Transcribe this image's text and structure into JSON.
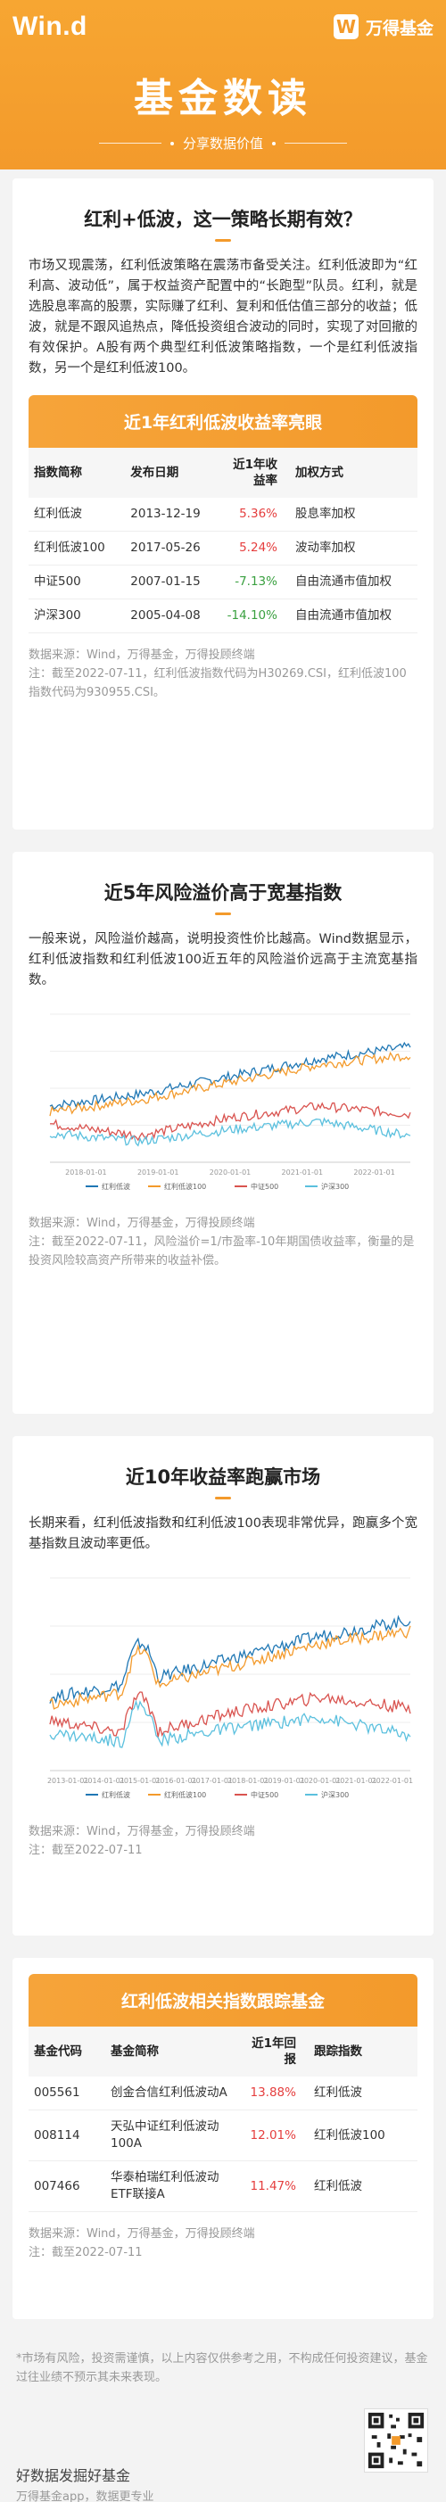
{
  "header": {
    "brand_left": "Win.d",
    "brand_right": "万得基金",
    "logo_glyph": "W",
    "title": "基金数读",
    "subtitle": "分享数据价值"
  },
  "section1": {
    "title": "红利+低波，这一策略长期有效？",
    "intro": "市场又现震荡，红利低波策略在震荡市备受关注。红利低波即为“红利高、波动低”，属于权益资产配置中的“长跑型”队员。红利，就是选股息率高的股票，实际赚了红利、复利和低估值三部分的收益；低波，就是不跟风追热点，降低投资组合波动的同时，实现了对回撤的有效保护。A股有两个典型红利低波策略指数，一个是红利低波指数，另一个是红利低波100。",
    "table_title": "近1年红利低波收益率亮眼",
    "columns": [
      "指数简称",
      "发布日期",
      "近1年收益率",
      "加权方式"
    ],
    "rows": [
      {
        "name": "红利低波",
        "date": "2013-12-19",
        "ret": "5.36%",
        "weight": "股息率加权",
        "sign": "up"
      },
      {
        "name": "红利低波100",
        "date": "2017-05-26",
        "ret": "5.24%",
        "weight": "波动率加权",
        "sign": "up"
      },
      {
        "name": "中证500",
        "date": "2007-01-15",
        "ret": "-7.13%",
        "weight": "自由流通市值加权",
        "sign": "down"
      },
      {
        "name": "沪深300",
        "date": "2005-04-08",
        "ret": "-14.10%",
        "weight": "自由流通市值加权",
        "sign": "down"
      }
    ],
    "source": "数据来源：Wind，万得基金，万得投顾终端",
    "notes": "注：截至2022-07-11，红利低波指数代码为H30269.CSI，红利低波100指数代码为930955.CSI。"
  },
  "section2": {
    "title": "近5年风险溢价高于宽基指数",
    "text": "一般来说，风险溢价越高，说明投资性价比越高。Wind数据显示，红利低波指数和红利低波100近五年的风险溢价远高于主流宽基指数。",
    "source": "数据来源：Wind，万得基金，万得投顾终端",
    "notes": "注：截至2022-07-11，风险溢价=1/市盈率-10年期国债收益率，衡量的是投资风险较高资产所带来的收益补偿。"
  },
  "section3": {
    "title": "近10年收益率跑赢市场",
    "text": "长期来看，红利低波指数和红利低波100表现非常优异，跑赢多个宽基指数且波动率更低。",
    "source": "数据来源：Wind，万得基金，万得投顾终端",
    "notes": "注：截至2022-07-11"
  },
  "section4": {
    "table_title": "红利低波相关指数跟踪基金",
    "columns": [
      "基金代码",
      "基金简称",
      "近1年回报",
      "跟踪指数"
    ],
    "rows": [
      {
        "code": "005561",
        "name": "创金合信红利低波动A",
        "ret": "13.88%",
        "index": "红利低波"
      },
      {
        "code": "008114",
        "name": "天弘中证红利低波动100A",
        "ret": "12.01%",
        "index": "红利低波100"
      },
      {
        "code": "007466",
        "name": "华泰柏瑞红利低波动ETF联接A",
        "ret": "11.47%",
        "index": "红利低波"
      }
    ],
    "source": "数据来源：Wind，万得基金，万得投顾终端",
    "notes": "注：截至2022-07-11"
  },
  "footer": {
    "disclaimer": "*市场有风险，投资需谨慎，以上内容仅供参考之用，不构成任何投资建议，基金过往业绩不预示其未来表现。",
    "slogan": "好数据发掘好基金",
    "slogan2": "万得基金app，数据更专业"
  },
  "chart_data": [
    {
      "type": "line",
      "title": "",
      "x": [
        "2018-01-01",
        "2019-01-01",
        "2020-01-01",
        "2021-01-01",
        "2022-01-01"
      ],
      "ylim": [
        0,
        1
      ],
      "series": [
        {
          "name": "红利低波",
          "color": "#1f77b4"
        },
        {
          "name": "红利低波100",
          "color": "#f39a2b"
        },
        {
          "name": "中证500",
          "color": "#d9534f"
        },
        {
          "name": "沪深300",
          "color": "#5bc0de"
        }
      ]
    },
    {
      "type": "line",
      "title": "",
      "x": [
        "2013-01-01",
        "2014-01-01",
        "2015-01-01",
        "2016-01-01",
        "2017-01-01",
        "2018-01-01",
        "2019-01-01",
        "2020-01-01",
        "2021-01-01",
        "2022-01-01"
      ],
      "ylim": [
        0,
        1
      ],
      "series": [
        {
          "name": "红利低波",
          "color": "#1f77b4"
        },
        {
          "name": "红利低波100",
          "color": "#f39a2b"
        },
        {
          "name": "中证500",
          "color": "#d9534f"
        },
        {
          "name": "沪深300",
          "color": "#5bc0de"
        }
      ]
    }
  ]
}
